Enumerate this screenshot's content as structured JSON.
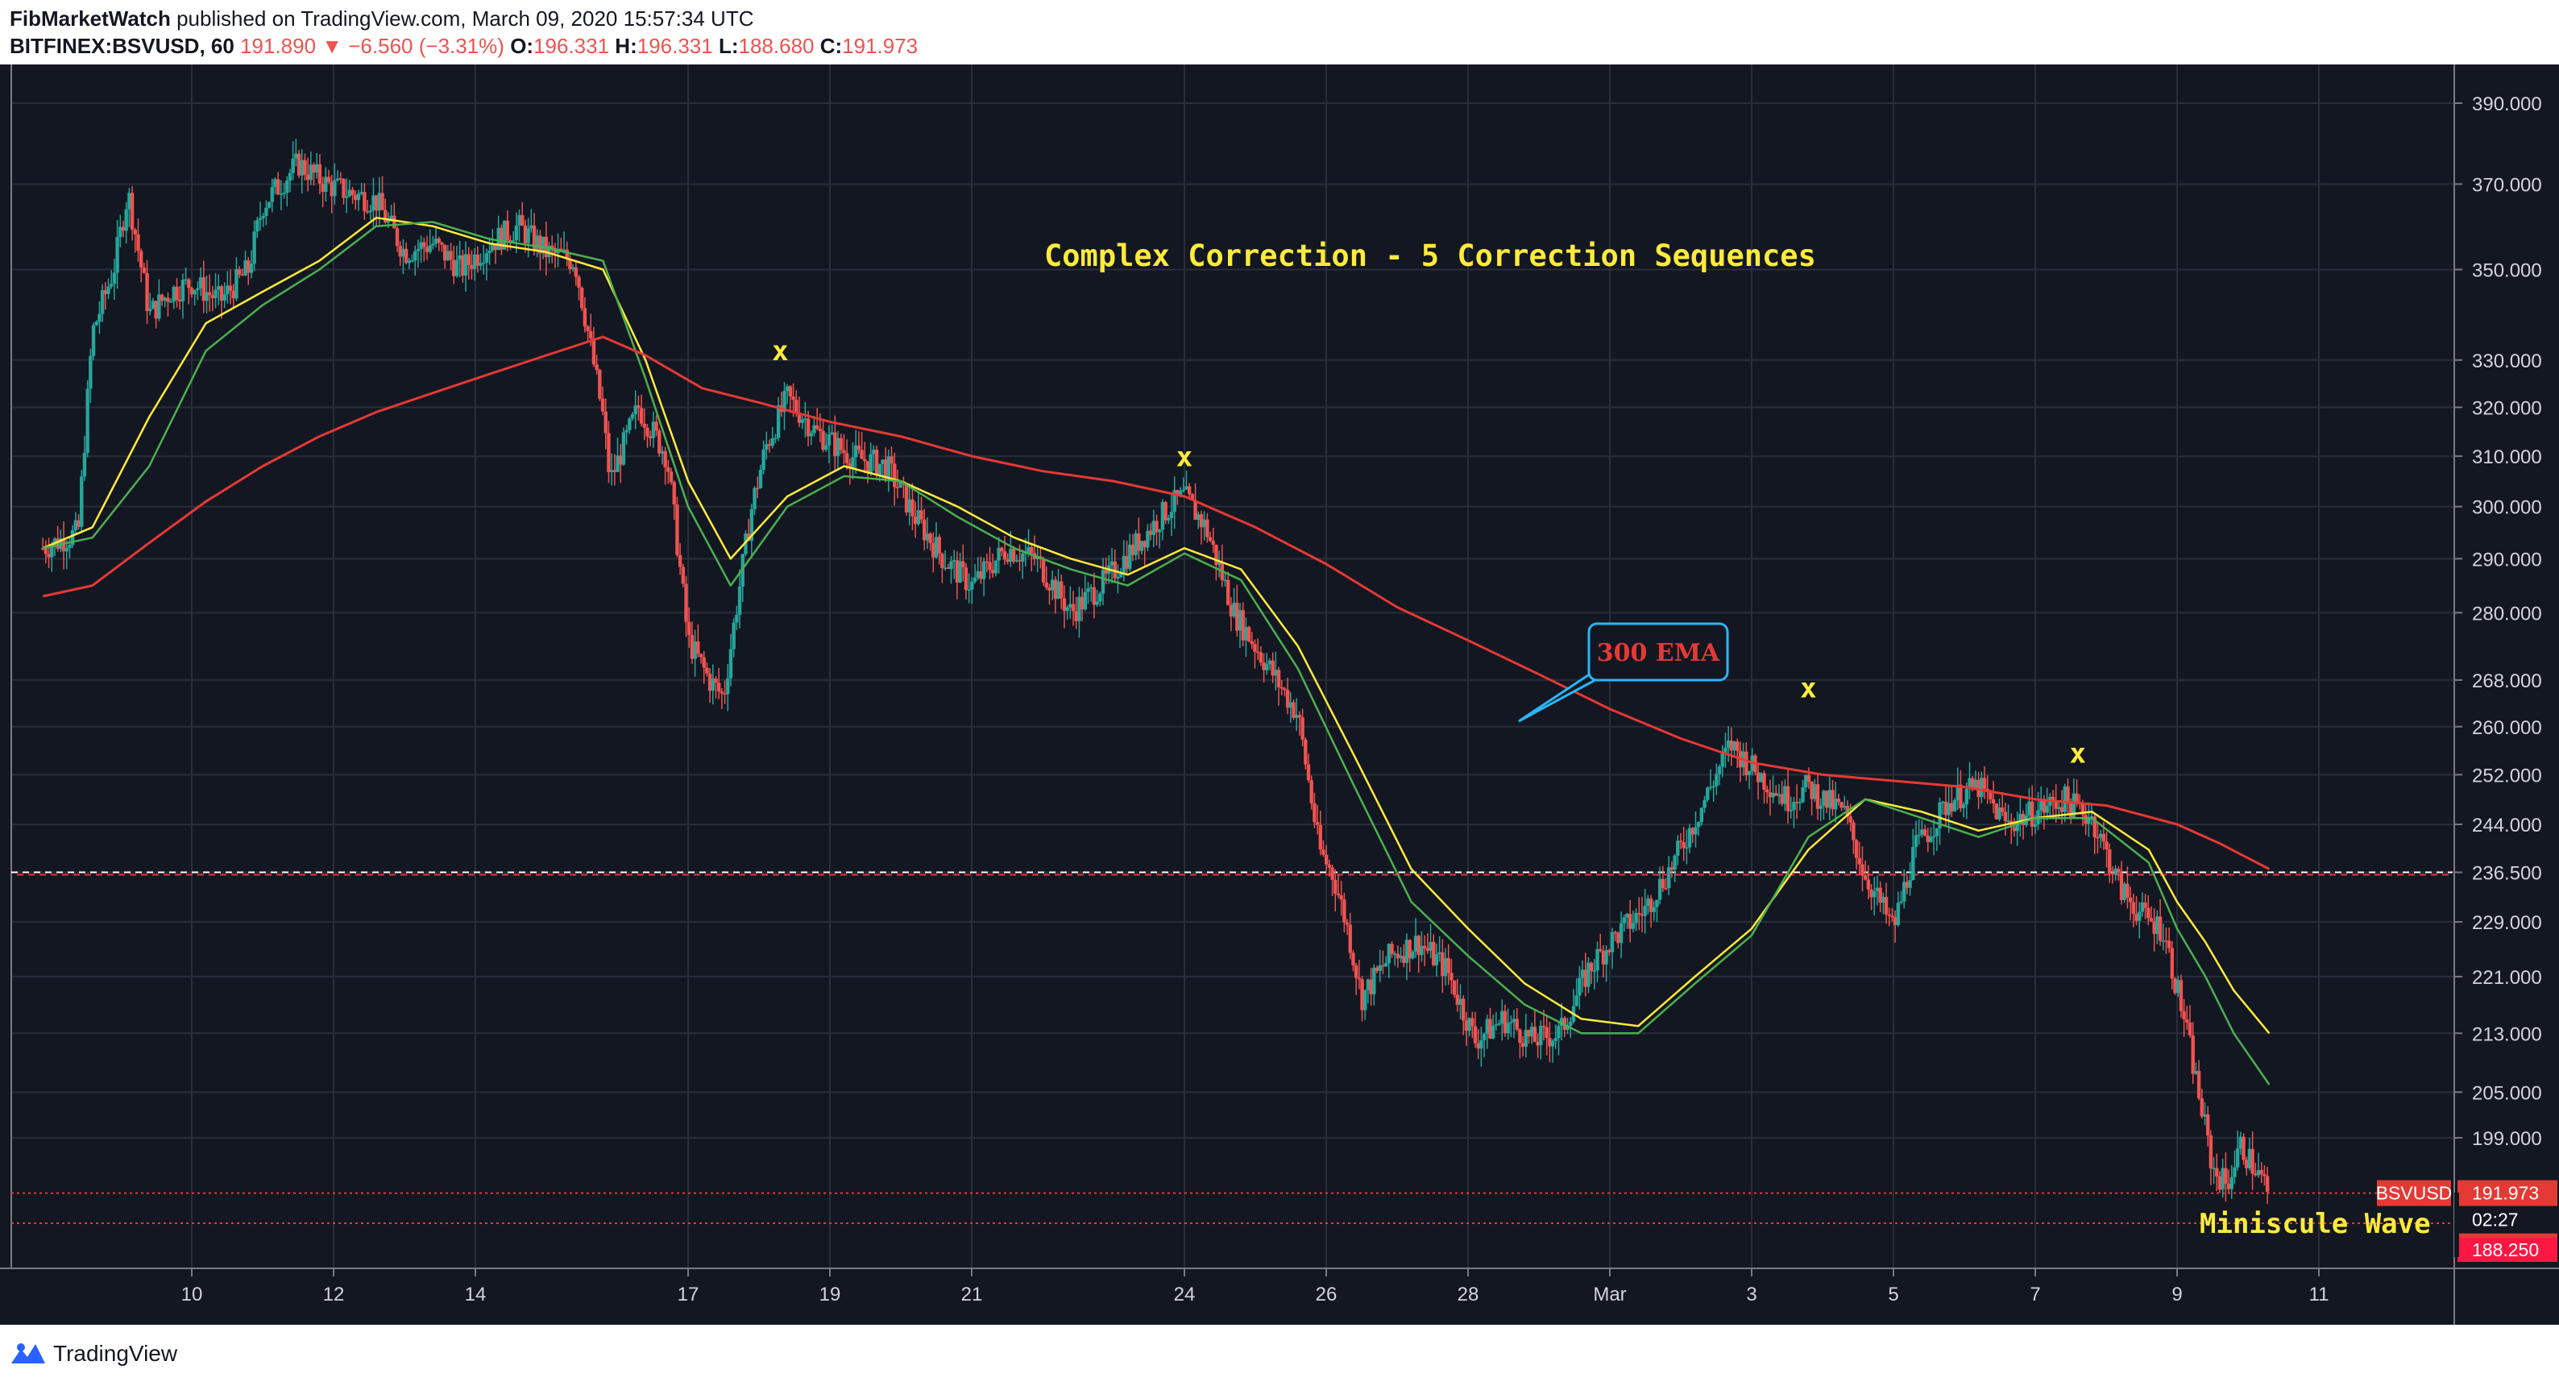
{
  "header": {
    "author": "FibMarketWatch",
    "published_text": "published on TradingView.com, March 09, 2020 15:57:34 UTC",
    "symbol_line": "BITFINEX:BSVUSD, 60",
    "last": "191.890",
    "change_arrow": "▼",
    "change": "−6.560 (−3.31%)",
    "o_label": "O:",
    "o_value": "196.331",
    "h_label": "H:",
    "h_value": "196.331",
    "l_label": "L:",
    "l_value": "188.680",
    "c_label": "C:",
    "c_value": "191.973"
  },
  "footer": {
    "brand": "TradingView"
  },
  "annotations": {
    "title": "Complex Correction - 5 Correction Sequences",
    "ema_label": "300 EMA",
    "wave_label": "Miniscule Wave",
    "x_marker": "x"
  },
  "price_tags": {
    "symbol": "BSVUSD",
    "close": "191.973",
    "countdown": "02:27",
    "last": "191.890",
    "low": "188.250"
  },
  "colors": {
    "background": "#131722",
    "grid": "#2a2e39",
    "up": "#26a69a",
    "down": "#ef5350",
    "ema_fast": "#ffeb3b",
    "ema_mid": "#4caf50",
    "ema_300": "#e53935",
    "annotation": "#ffeb3b",
    "callout_border": "#29b6f6"
  },
  "chart_data": {
    "type": "line",
    "title": "Complex Correction - 5 Correction Sequences",
    "xlabel": "",
    "ylabel": "",
    "ylim": [
      180,
      395
    ],
    "scale": "log",
    "x_ticks": [
      "10",
      "12",
      "14",
      "17",
      "19",
      "21",
      "24",
      "26",
      "28",
      "Mar",
      "3",
      "5",
      "7",
      "9",
      "11"
    ],
    "x_tick_days": [
      10,
      12,
      14,
      17,
      19,
      21,
      24,
      26,
      28,
      30,
      32,
      34,
      36,
      38,
      40
    ],
    "y_ticks": [
      390,
      370,
      350,
      330,
      320,
      310,
      300,
      290,
      280,
      268,
      260,
      252,
      244,
      236.5,
      229,
      221,
      213,
      205,
      199
    ],
    "y_tick_labels": [
      "390.000",
      "370.000",
      "350.000",
      "330.000",
      "320.000",
      "310.000",
      "300.000",
      "290.000",
      "280.000",
      "268.000",
      "260.000",
      "252.000",
      "244.000",
      "236.500",
      "229.000",
      "221.000",
      "213.000",
      "205.000",
      "199.000"
    ],
    "horizontal_levels": [
      236.5,
      191.973,
      188.25
    ],
    "x_markers": [
      {
        "day": 18.3,
        "price": 330
      },
      {
        "day": 24.0,
        "price": 308
      },
      {
        "day": 32.8,
        "price": 265
      },
      {
        "day": 36.6,
        "price": 254
      }
    ],
    "series": [
      {
        "name": "price",
        "x": [
          7.9,
          8.4,
          8.6,
          8.9,
          9.1,
          9.4,
          9.7,
          10.0,
          10.4,
          10.8,
          11.0,
          11.5,
          11.9,
          12.2,
          12.6,
          13.0,
          13.4,
          13.8,
          14.2,
          14.6,
          15.0,
          15.4,
          15.8,
          15.9,
          16.3,
          16.7,
          17.0,
          17.3,
          17.5,
          17.9,
          18.1,
          18.4,
          18.8,
          19.3,
          19.8,
          20.2,
          20.6,
          21.0,
          21.5,
          21.9,
          22.4,
          22.9,
          23.4,
          23.8,
          24.0,
          24.3,
          24.7,
          25.2,
          25.6,
          25.9,
          26.1,
          26.3,
          26.5,
          26.9,
          27.3,
          27.7,
          28.1,
          28.5,
          28.9,
          29.3,
          29.7,
          30.0,
          30.5,
          30.9,
          31.3,
          31.7,
          32.1,
          32.5,
          32.8,
          33.0,
          33.3,
          33.6,
          34.0,
          34.3,
          34.5,
          34.8,
          35.2,
          35.6,
          36.0,
          36.4,
          36.8,
          37.2,
          37.5,
          37.8,
          38.1,
          38.3,
          38.5,
          38.7,
          38.9,
          39.1,
          39.3
        ],
        "values": [
          292,
          295,
          336,
          350,
          368,
          340,
          345,
          347,
          343,
          350,
          365,
          375,
          370,
          368,
          366,
          354,
          356,
          350,
          356,
          360,
          354,
          352,
          318,
          305,
          320,
          310,
          275,
          268,
          265,
          300,
          312,
          322,
          315,
          310,
          308,
          298,
          290,
          285,
          292,
          290,
          280,
          286,
          294,
          300,
          302,
          296,
          280,
          270,
          262,
          240,
          236,
          228,
          218,
          224,
          226,
          222,
          212,
          215,
          212,
          213,
          222,
          226,
          231,
          238,
          247,
          257,
          252,
          248,
          250,
          248,
          246,
          236,
          228,
          240,
          243,
          248,
          250,
          244,
          246,
          248,
          245,
          234,
          230,
          228,
          215,
          205,
          195,
          193,
          198,
          195,
          192
        ]
      },
      {
        "name": "EMA fast",
        "x": [
          7.9,
          8.6,
          9.4,
          10.2,
          11.0,
          11.8,
          12.6,
          13.4,
          14.2,
          15.0,
          15.8,
          16.4,
          17.0,
          17.6,
          18.4,
          19.2,
          20.0,
          20.8,
          21.6,
          22.4,
          23.2,
          24.0,
          24.8,
          25.6,
          26.4,
          27.2,
          28.0,
          28.8,
          29.6,
          30.4,
          31.2,
          32.0,
          32.8,
          33.6,
          34.4,
          35.2,
          36.0,
          36.8,
          37.6,
          38.0,
          38.4,
          38.8,
          39.3
        ],
        "values": [
          292,
          296,
          318,
          338,
          345,
          352,
          362,
          360,
          356,
          354,
          350,
          330,
          305,
          290,
          302,
          308,
          305,
          300,
          294,
          290,
          287,
          292,
          288,
          274,
          255,
          237,
          228,
          220,
          215,
          214,
          221,
          228,
          240,
          248,
          246,
          243,
          245,
          246,
          240,
          232,
          226,
          219,
          213
        ]
      },
      {
        "name": "EMA mid",
        "x": [
          7.9,
          8.6,
          9.4,
          10.2,
          11.0,
          11.8,
          12.6,
          13.4,
          14.2,
          15.0,
          15.8,
          16.4,
          17.0,
          17.6,
          18.4,
          19.2,
          20.0,
          20.8,
          21.6,
          22.4,
          23.2,
          24.0,
          24.8,
          25.6,
          26.4,
          27.2,
          28.0,
          28.8,
          29.6,
          30.4,
          31.2,
          32.0,
          32.8,
          33.6,
          34.4,
          35.2,
          36.0,
          36.8,
          37.6,
          38.0,
          38.4,
          38.8,
          39.3
        ],
        "values": [
          292,
          294,
          308,
          332,
          342,
          350,
          360,
          361,
          357,
          355,
          352,
          326,
          300,
          285,
          300,
          306,
          305,
          298,
          292,
          288,
          285,
          291,
          286,
          270,
          250,
          232,
          224,
          217,
          213,
          213,
          220,
          227,
          242,
          248,
          245,
          242,
          245,
          245,
          238,
          228,
          221,
          213,
          206
        ]
      },
      {
        "name": "300 EMA",
        "x": [
          7.9,
          8.6,
          9.4,
          10.2,
          11.0,
          11.8,
          12.6,
          13.4,
          14.2,
          15.0,
          15.8,
          16.4,
          17.2,
          18.0,
          19.0,
          20.0,
          21.0,
          22.0,
          23.0,
          24.0,
          25.0,
          26.0,
          27.0,
          28.0,
          29.0,
          30.0,
          31.0,
          32.0,
          33.0,
          34.0,
          35.0,
          36.0,
          37.0,
          38.0,
          38.6,
          39.3
        ],
        "values": [
          283,
          285,
          293,
          301,
          308,
          314,
          319,
          323,
          327,
          331,
          335,
          331,
          324,
          321,
          317,
          314,
          310,
          307,
          305,
          302,
          296,
          289,
          281,
          275,
          269,
          263,
          258,
          254,
          252,
          251,
          250,
          248,
          247,
          244,
          241,
          237
        ]
      }
    ]
  }
}
